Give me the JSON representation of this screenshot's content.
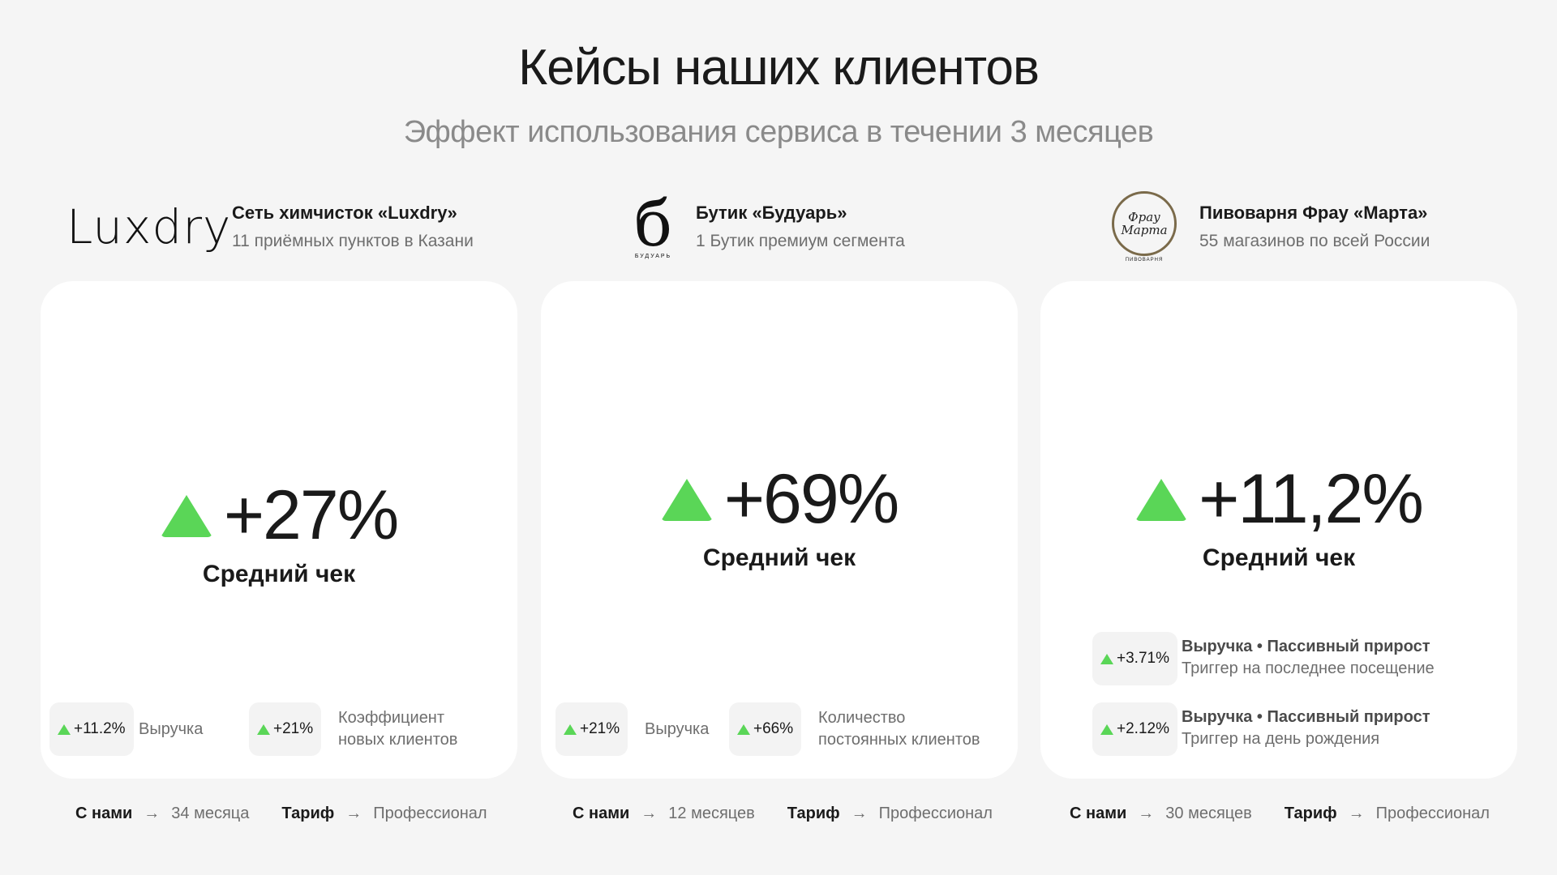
{
  "title": "Кейсы наших клиентов",
  "subtitle": "Эффект использования сервиса в течении 3 месяцев",
  "cases": [
    {
      "logo_text": "Luxdry",
      "name": "Сеть химчисток «Luxdry»",
      "desc": "11 приёмных пунктов в Казани",
      "metric_value": "+27%",
      "metric_label": "Средний чек",
      "stats": [
        {
          "value": "+11.2%",
          "label": "Выручка"
        },
        {
          "value": "+21%",
          "label": "Коэффициент\nновых клиентов"
        }
      ],
      "with_us_key": "С нами",
      "with_us_val": "34 месяца",
      "tariff_key": "Тариф",
      "tariff_val": "Профессионал"
    },
    {
      "logo_text": "б",
      "logo_sub": "БУДУАРЬ",
      "name": "Бутик «Будуарь»",
      "desc": "1 Бутик премиум сегмента",
      "metric_value": "+69%",
      "metric_label": "Средний чек",
      "stats": [
        {
          "value": "+21%",
          "label": "Выручка"
        },
        {
          "value": "+66%",
          "label": "Количество\nпостоянных клиентов"
        }
      ],
      "with_us_key": "С нами",
      "with_us_val": "12 месяцев",
      "tariff_key": "Тариф",
      "tariff_val": "Профессионал"
    },
    {
      "logo_text": "Фрау Марта",
      "logo_sub": "ПИВОВАРНЯ",
      "name": "Пивоварня Фрау «Марта»",
      "desc": "55 магазинов по всей России",
      "metric_value": "+11,2%",
      "metric_label": "Средний чек",
      "stats": [
        {
          "value": "+3.71%",
          "title": "Выручка • Пассивный прирост",
          "label": "Триггер на последнее посещение"
        },
        {
          "value": "+2.12%",
          "title": "Выручка • Пассивный прирост",
          "label": "Триггер на день рождения"
        }
      ],
      "with_us_key": "С нами",
      "with_us_val": "30 месяцев",
      "tariff_key": "Тариф",
      "tariff_val": "Профессионал"
    }
  ],
  "colors": {
    "accent": "#5ad657",
    "background": "#f5f5f5",
    "card": "#ffffff"
  }
}
